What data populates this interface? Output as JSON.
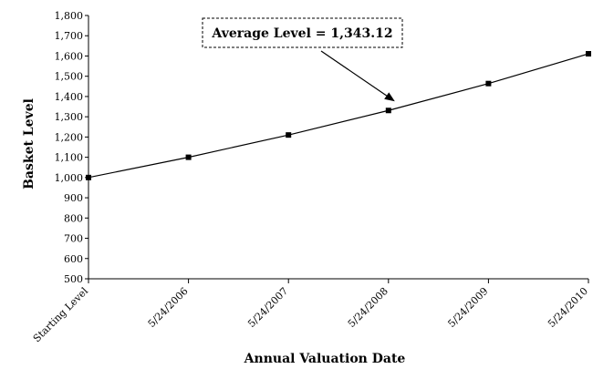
{
  "chart_data": {
    "type": "line",
    "title": "",
    "xlabel": "Annual Valuation Date",
    "ylabel": "Basket Level",
    "categories": [
      "Starting Level",
      "5/24/2006",
      "5/24/2007",
      "5/24/2008",
      "5/24/2009",
      "5/24/2010"
    ],
    "series": [
      {
        "name": "",
        "values": [
          1000,
          1100,
          1210,
          1331,
          1464,
          1611
        ]
      }
    ],
    "ylim": [
      500,
      1800
    ],
    "yticks": [
      500,
      600,
      700,
      800,
      900,
      1000,
      1100,
      1200,
      1300,
      1400,
      1500,
      1600,
      1700,
      1800
    ],
    "ytick_labels": [
      "500",
      "600",
      "700",
      "800",
      "900",
      "1,000",
      "1,100",
      "1,200",
      "1,300",
      "1,400",
      "1,500",
      "1,600",
      "1,700",
      "1,800"
    ],
    "grid": false,
    "marker": "square",
    "line_color": "#000000",
    "annotation": {
      "text": "Average Level = 1,343.12",
      "points_to_category": "5/24/2008"
    }
  }
}
